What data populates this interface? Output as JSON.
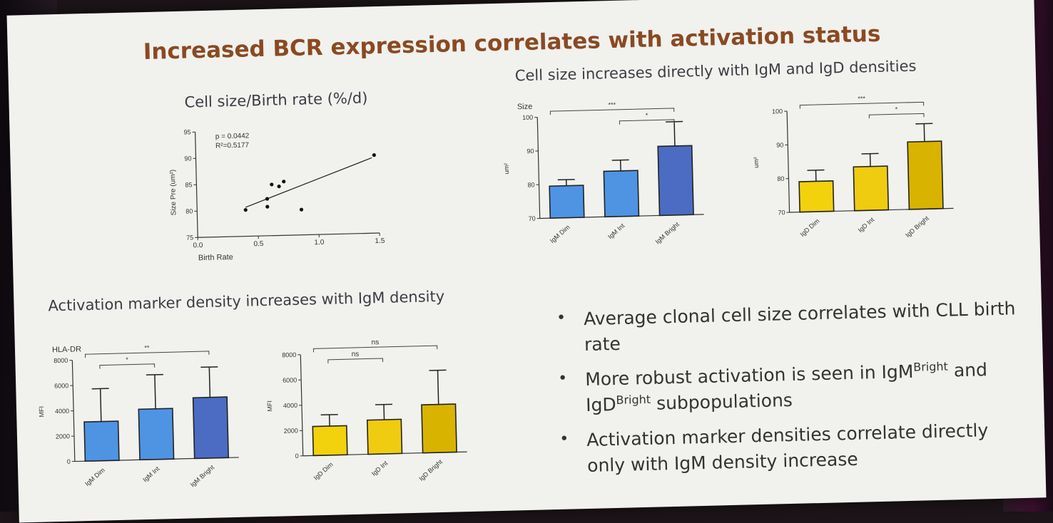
{
  "slide": {
    "title": "Increased BCR expression correlates with activation status",
    "scatter_heading": "Cell size/Birth rate (%/d)",
    "size_heading": "Cell size increases directly with IgM and IgD densities",
    "activation_heading": "Activation marker density increases with IgM density"
  },
  "bullets": [
    {
      "text": "Average clonal cell size correlates with CLL birth rate"
    },
    {
      "part1": "More robust activation is seen in IgM",
      "sup1": "Bright",
      "part2": " and IgD",
      "sup2": "Bright",
      "part3": " subpopulations"
    },
    {
      "text": "Activation marker densities correlate directly only with IgM density increase"
    }
  ],
  "colors": {
    "igm_dim": "#4f93e3",
    "igm_int": "#4f93e3",
    "igm_bright": "#4b6cc2",
    "igd_dim": "#f2d20c",
    "igd_int": "#efcc10",
    "igd_bright": "#d8b400",
    "title": "#8a4a22"
  },
  "chart_data": [
    {
      "id": "scatter",
      "type": "scatter",
      "title": "Cell size/Birth rate (%/d)",
      "xlabel": "Birth Rate",
      "ylabel": "Size Pre (um²)",
      "xlim": [
        0.0,
        1.5
      ],
      "ylim": [
        75,
        95
      ],
      "xticks": [
        "0.0",
        "0.5",
        "1.0",
        "1.5"
      ],
      "yticks": [
        "75",
        "80",
        "85",
        "90",
        "95"
      ],
      "annotations": [
        "p = 0.0442",
        "R²=0.5177"
      ],
      "points": [
        [
          0.4,
          80
        ],
        [
          0.58,
          80.5
        ],
        [
          0.58,
          82
        ],
        [
          0.62,
          84.7
        ],
        [
          0.68,
          84.3
        ],
        [
          0.72,
          85.2
        ],
        [
          0.86,
          79.8
        ],
        [
          1.47,
          89.8
        ]
      ],
      "fit_line": [
        [
          0.4,
          80.5
        ],
        [
          1.45,
          89.3
        ]
      ]
    },
    {
      "id": "igm_size",
      "type": "bar",
      "ylabel": "um²",
      "top_label": "Size",
      "ylim": [
        70,
        100
      ],
      "yticks": [
        "70",
        "80",
        "90",
        "100"
      ],
      "categories": [
        "IgM Dim",
        "IgM Int",
        "IgM Bright"
      ],
      "values": [
        79.5,
        83.5,
        90.5
      ],
      "error": [
        1.8,
        3.2,
        7.2
      ],
      "bar_colors": [
        "#4f93e3",
        "#4f93e3",
        "#4b6cc2"
      ],
      "significance": [
        {
          "from": 0,
          "to": 2,
          "label": "***"
        },
        {
          "from": 1,
          "to": 2,
          "label": "*"
        }
      ]
    },
    {
      "id": "igd_size",
      "type": "bar",
      "ylabel": "um²",
      "top_label": "",
      "ylim": [
        70,
        100
      ],
      "yticks": [
        "70",
        "80",
        "90",
        "100"
      ],
      "categories": [
        "IgD Dim",
        "IgD Int",
        "IgD Bright"
      ],
      "values": [
        79,
        83,
        90
      ],
      "error": [
        3.3,
        3.8,
        5.3
      ],
      "bar_colors": [
        "#f2d20c",
        "#efcc10",
        "#d8b400"
      ],
      "significance": [
        {
          "from": 0,
          "to": 2,
          "label": "***"
        },
        {
          "from": 1,
          "to": 2,
          "label": "*"
        }
      ]
    },
    {
      "id": "igm_hla",
      "type": "bar",
      "ylabel": "MFI",
      "top_label": "HLA-DR",
      "ylim": [
        0,
        8000
      ],
      "yticks": [
        "0",
        "2000",
        "4000",
        "6000",
        "8000"
      ],
      "categories": [
        "IgM Dim",
        "IgM Int",
        "IgM Bright"
      ],
      "values": [
        3100,
        4000,
        4800
      ],
      "error": [
        2600,
        2700,
        2400
      ],
      "bar_colors": [
        "#4f93e3",
        "#4f93e3",
        "#4b6cc2"
      ],
      "significance": [
        {
          "from": 0,
          "to": 2,
          "label": "**"
        },
        {
          "from": 0,
          "to": 1,
          "label": "*"
        }
      ]
    },
    {
      "id": "igd_hla",
      "type": "bar",
      "ylabel": "MFI",
      "top_label": "",
      "ylim": [
        0,
        8000
      ],
      "yticks": [
        "0",
        "2000",
        "4000",
        "6000",
        "8000"
      ],
      "categories": [
        "IgD Dim",
        "IgD Int",
        "IgD Bright"
      ],
      "values": [
        2300,
        2700,
        3800
      ],
      "error": [
        900,
        1200,
        2700
      ],
      "bar_colors": [
        "#f2d20c",
        "#efcc10",
        "#d8b400"
      ],
      "significance": [
        {
          "from": 0,
          "to": 2,
          "label": "ns"
        },
        {
          "from": 0,
          "to": 1,
          "label": "ns"
        }
      ]
    }
  ]
}
